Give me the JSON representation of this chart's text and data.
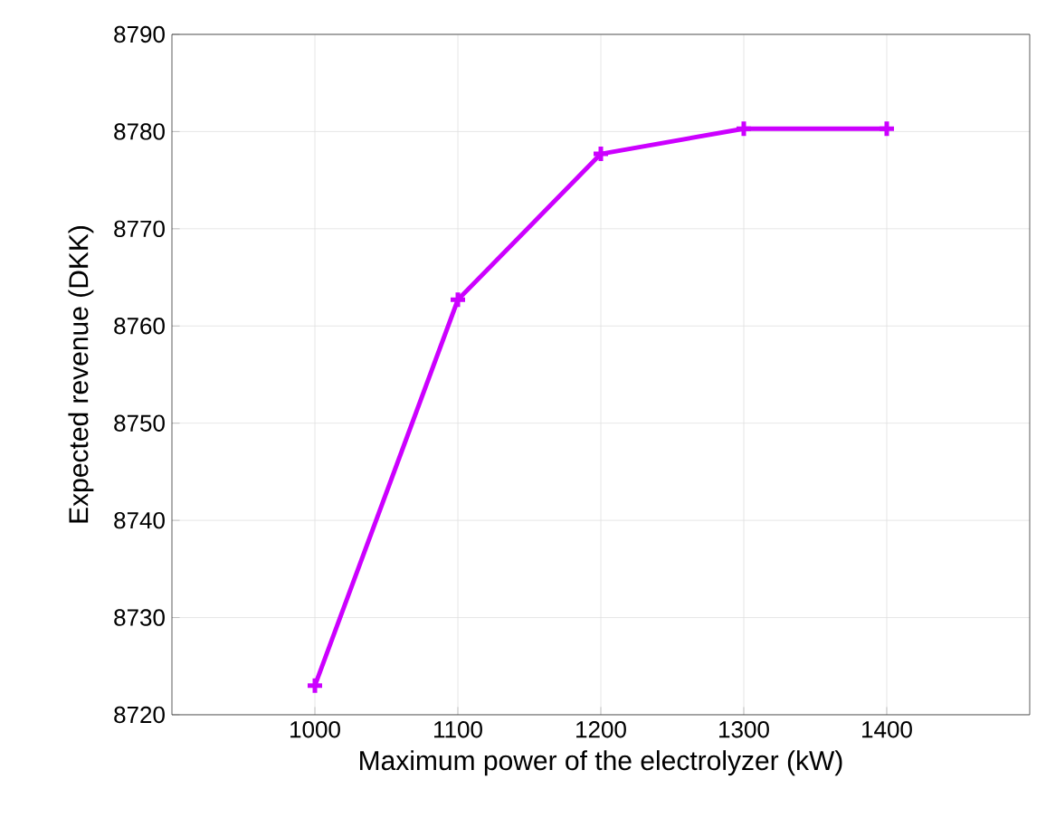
{
  "chart_data": {
    "type": "line",
    "xlabel": "Maximum power of the electrolyzer (kW)",
    "ylabel": "Expected revenue (DKK)",
    "x": [
      1000,
      1100,
      1200,
      1300,
      1400
    ],
    "series": [
      {
        "color": "#cc00ff",
        "values": [
          8723,
          8762.7,
          8777.7,
          8780.3,
          8780.3
        ]
      }
    ],
    "xlim": [
      900,
      1500
    ],
    "xticks": [
      1000,
      1100,
      1200,
      1300,
      1400
    ],
    "ylim": [
      8720,
      8790
    ],
    "yticks": [
      8720,
      8730,
      8740,
      8750,
      8760,
      8770,
      8780,
      8790
    ],
    "grid": true,
    "marker": "cross",
    "line_style": "solid"
  }
}
